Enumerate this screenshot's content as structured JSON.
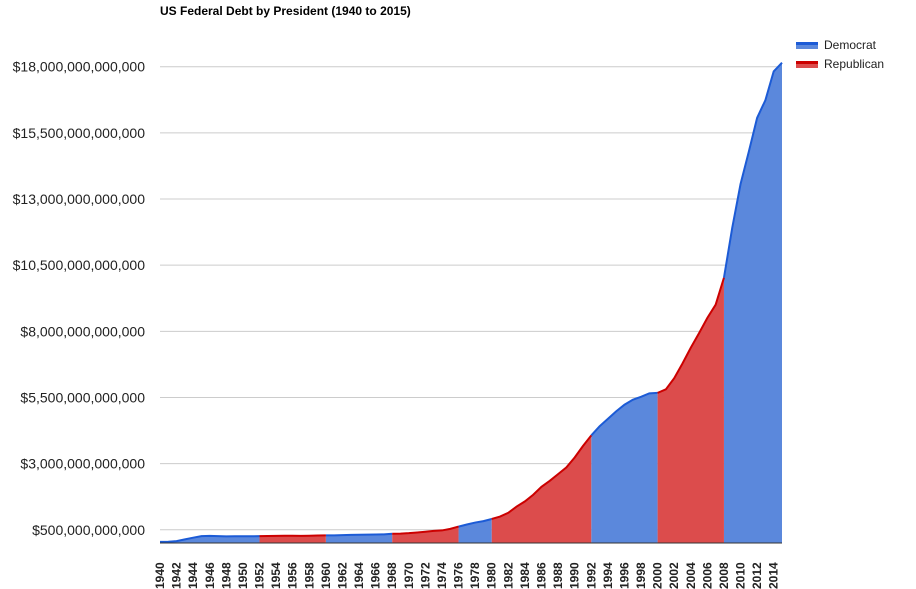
{
  "chart_data": {
    "type": "area",
    "title": "US Federal Debt by President (1940 to 2015)",
    "xlabel": "",
    "ylabel": "",
    "ylim": [
      0,
      19000000000000
    ],
    "xlim": [
      1940,
      2015
    ],
    "grid": true,
    "legend": "right",
    "y_ticks": [
      500000000000,
      3000000000000,
      5500000000000,
      8000000000000,
      10500000000000,
      13000000000000,
      15500000000000,
      18000000000000
    ],
    "y_tick_labels": [
      "$500,000,000,000",
      "$3,000,000,000,000",
      "$5,500,000,000,000",
      "$8,000,000,000,000",
      "$10,500,000,000,000",
      "$13,000,000,000,000",
      "$15,500,000,000,000",
      "$18,000,000,000,000"
    ],
    "x_tick_labels": [
      "1940",
      "1942",
      "1944",
      "1946",
      "1948",
      "1950",
      "1952",
      "1954",
      "1956",
      "1958",
      "1960",
      "1962",
      "1964",
      "1966",
      "1968",
      "1970",
      "1972",
      "1974",
      "1976",
      "1978",
      "1980",
      "1982",
      "1984",
      "1986",
      "1988",
      "1990",
      "1992",
      "1994",
      "1996",
      "1998",
      "2000",
      "2002",
      "2004",
      "2006",
      "2008",
      "2010",
      "2012",
      "2014"
    ],
    "x": [
      1940,
      1941,
      1942,
      1943,
      1944,
      1945,
      1946,
      1947,
      1948,
      1949,
      1950,
      1951,
      1952,
      1953,
      1954,
      1955,
      1956,
      1957,
      1958,
      1959,
      1960,
      1961,
      1962,
      1963,
      1964,
      1965,
      1966,
      1967,
      1968,
      1969,
      1970,
      1971,
      1972,
      1973,
      1974,
      1975,
      1976,
      1977,
      1978,
      1979,
      1980,
      1981,
      1982,
      1983,
      1984,
      1985,
      1986,
      1987,
      1988,
      1989,
      1990,
      1991,
      1992,
      1993,
      1994,
      1995,
      1996,
      1997,
      1998,
      1999,
      2000,
      2001,
      2002,
      2003,
      2004,
      2005,
      2006,
      2007,
      2008,
      2009,
      2010,
      2011,
      2012,
      2013,
      2014,
      2015
    ],
    "values_trillions": [
      0.043,
      0.049,
      0.072,
      0.137,
      0.201,
      0.259,
      0.269,
      0.258,
      0.252,
      0.253,
      0.257,
      0.255,
      0.259,
      0.266,
      0.271,
      0.274,
      0.273,
      0.271,
      0.276,
      0.285,
      0.286,
      0.289,
      0.298,
      0.306,
      0.312,
      0.317,
      0.32,
      0.326,
      0.348,
      0.354,
      0.371,
      0.398,
      0.427,
      0.458,
      0.475,
      0.533,
      0.62,
      0.699,
      0.772,
      0.827,
      0.908,
      0.998,
      1.142,
      1.377,
      1.572,
      1.823,
      2.125,
      2.35,
      2.602,
      2.857,
      3.233,
      3.665,
      4.065,
      4.411,
      4.693,
      4.974,
      5.225,
      5.413,
      5.526,
      5.656,
      5.674,
      5.807,
      6.228,
      6.783,
      7.379,
      7.933,
      8.507,
      9.008,
      10.025,
      11.91,
      13.562,
      14.79,
      16.066,
      16.738,
      17.824,
      18.151
    ],
    "series": [
      {
        "name": "Democrat",
        "color": "#1c5bd6",
        "fill": "#5b88dc",
        "periods": [
          [
            1940,
            1952
          ],
          [
            1960,
            1968
          ],
          [
            1976,
            1980
          ],
          [
            1992,
            2000
          ],
          [
            2008,
            2015
          ]
        ]
      },
      {
        "name": "Republican",
        "color": "#cc0000",
        "fill": "#dc4c4c",
        "periods": [
          [
            1952,
            1960
          ],
          [
            1968,
            1976
          ],
          [
            1980,
            1992
          ],
          [
            2000,
            2008
          ]
        ]
      }
    ]
  }
}
